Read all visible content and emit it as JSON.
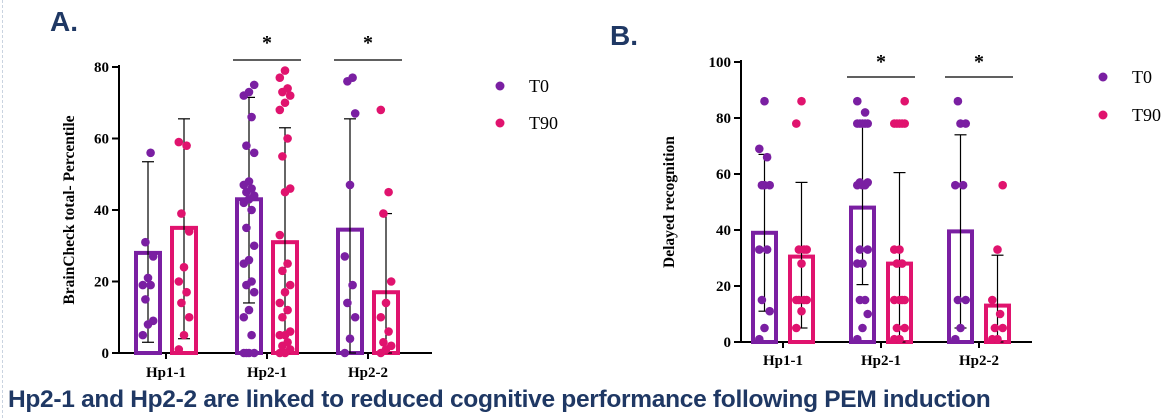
{
  "caption": "Hp2-1 and Hp2-2 are linked to reduced cognitive performance following PEM induction",
  "colors": {
    "T0": "#7a1fa2",
    "T90": "#e0136e",
    "caption": "#1f3864"
  },
  "chart_data": [
    {
      "id": "A",
      "panel_label": "A.",
      "type": "bar",
      "ylabel": "BrainCheck total- Percentile",
      "ylim": [
        0,
        80
      ],
      "yticks": [
        0,
        20,
        40,
        60,
        80
      ],
      "categories": [
        "Hp1-1",
        "Hp2-1",
        "Hp2-2"
      ],
      "legend": "right",
      "grid": false,
      "series": [
        {
          "name": "T0",
          "values": [
            28,
            43,
            34.5
          ],
          "error_low": [
            3,
            14,
            0
          ],
          "error_high": [
            53.5,
            71.5,
            65.5
          ],
          "points": [
            [
              5,
              8,
              9,
              15,
              19,
              19,
              21,
              27,
              31,
              56
            ],
            [
              0,
              0,
              0,
              0,
              5,
              10,
              12,
              17,
              19,
              20,
              25,
              26,
              30,
              35,
              40,
              42,
              43,
              44,
              45,
              46,
              47,
              48,
              56,
              58,
              66,
              72,
              73,
              75
            ],
            [
              0,
              4,
              10,
              14,
              19,
              27,
              47,
              67,
              76,
              77
            ]
          ]
        },
        {
          "name": "T90",
          "values": [
            35,
            31,
            17
          ],
          "error_low": [
            4,
            0,
            0
          ],
          "error_high": [
            65.5,
            63,
            39
          ],
          "points": [
            [
              1,
              5,
              10,
              14,
              17,
              20,
              24,
              34,
              39,
              58,
              59
            ],
            [
              0,
              0,
              1,
              2,
              3,
              5,
              5,
              6,
              10,
              12,
              14,
              17,
              19,
              23,
              25,
              33,
              45,
              46,
              55,
              60,
              68,
              70,
              72,
              73,
              74,
              77,
              79
            ],
            [
              0,
              1,
              2,
              3,
              6,
              10,
              14,
              20,
              39,
              45,
              68
            ]
          ]
        }
      ],
      "significance": [
        {
          "category": "Hp2-1",
          "label": "*"
        },
        {
          "category": "Hp2-2",
          "label": "*"
        }
      ]
    },
    {
      "id": "B",
      "panel_label": "B.",
      "type": "bar",
      "ylabel": "Delayed recognition",
      "ylim": [
        0,
        100
      ],
      "yticks": [
        0,
        20,
        40,
        60,
        80,
        100
      ],
      "categories": [
        "Hp1-1",
        "Hp2-1",
        "Hp2-2"
      ],
      "legend": "right",
      "grid": false,
      "series": [
        {
          "name": "T0",
          "values": [
            39,
            48,
            39.5
          ],
          "error_low": [
            11,
            20.5,
            5
          ],
          "error_high": [
            67,
            77,
            74
          ],
          "points": [
            [
              1,
              5,
              11,
              15,
              33,
              33,
              56,
              56,
              56,
              66,
              69,
              86
            ],
            [
              1,
              5,
              10,
              15,
              15,
              28,
              28,
              33,
              33,
              56,
              56,
              56,
              57,
              57,
              78,
              78,
              78,
              78,
              78,
              82,
              86
            ],
            [
              1,
              5,
              15,
              15,
              56,
              56,
              78,
              78,
              86
            ]
          ]
        },
        {
          "name": "T90",
          "values": [
            30.5,
            28,
            13
          ],
          "error_low": [
            5,
            0,
            0
          ],
          "error_high": [
            57,
            60.5,
            31
          ],
          "points": [
            [
              5,
              11,
              15,
              15,
              15,
              15,
              28,
              33,
              33,
              33,
              78,
              86
            ],
            [
              1,
              1,
              5,
              5,
              15,
              15,
              15,
              15,
              28,
              28,
              33,
              33,
              78,
              78,
              78,
              78,
              78,
              86
            ],
            [
              1,
              1,
              5,
              5,
              10,
              15,
              33,
              56
            ]
          ]
        }
      ],
      "significance": [
        {
          "category": "Hp2-1",
          "label": "*"
        },
        {
          "category": "Hp2-2",
          "label": "*"
        }
      ]
    }
  ]
}
